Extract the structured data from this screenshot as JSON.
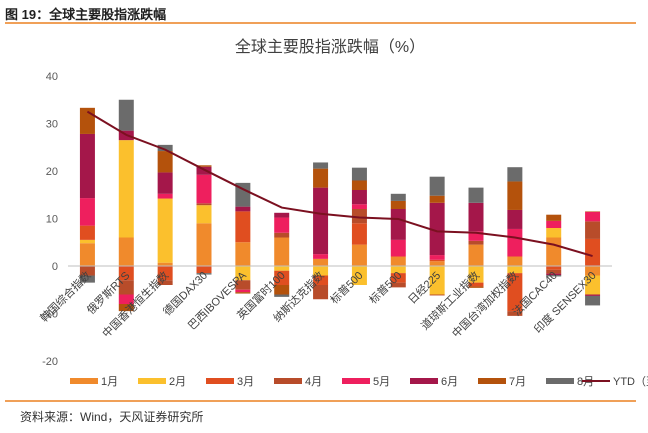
{
  "figure_label": "图 19：全球主要股指涨跌幅",
  "source_note": "资料来源：Wind，天风证券研究所",
  "colors": {
    "rule": "#f0a058",
    "ytd_line": "#7b1020",
    "months": [
      "#f08a2c",
      "#fbc02d",
      "#e04e20",
      "#b84c2a",
      "#ee1f5e",
      "#a4174a",
      "#b4520c",
      "#6b6b6b"
    ]
  },
  "chart_data": {
    "type": "bar",
    "stacked": true,
    "title": "全球主要股指涨跌幅（%）",
    "xlabel": "",
    "ylabel": "",
    "ylim": [
      -20,
      40
    ],
    "yticks": [
      -20,
      -10,
      0,
      10,
      20,
      30,
      40
    ],
    "grid": false,
    "legend_position": "bottom",
    "categories": [
      "韩国综合指数",
      "俄罗斯RTS",
      "中国香港恒生指数",
      "德国DAX30",
      "巴西IBOVESPA",
      "英国富时100",
      "纳斯达克指数",
      "标普500",
      "标普500",
      "日经225",
      "道琼斯工业指数",
      "中国台湾加权指数",
      "法国CAC40",
      "印度 SENSEX30"
    ],
    "series": [
      {
        "name": "1月",
        "values": [
          4.8,
          6.0,
          0.7,
          9.0,
          5.0,
          6.0,
          1.5,
          4.5,
          2.0,
          1.0,
          4.5,
          2.0,
          6.0,
          -2.0
        ]
      },
      {
        "name": "2月",
        "values": [
          0.7,
          20.5,
          13.5,
          3.8,
          -3.0,
          -1.0,
          -2.0,
          -4.0,
          -1.5,
          -6.0,
          -3.5,
          -1.5,
          2.0,
          -4.0
        ]
      },
      {
        "name": "3月",
        "values": [
          3.0,
          -3.0,
          -3.0,
          -1.5,
          6.5,
          -3.0,
          -2.0,
          4.5,
          -2.0,
          0.3,
          -0.8,
          -8.0,
          -0.8,
          5.7
        ]
      },
      {
        "name": "4月",
        "values": [
          -2.0,
          -3.0,
          -1.0,
          0.4,
          -2.0,
          1.0,
          -3.0,
          3.0,
          -1.0,
          -0.2,
          0.8,
          -1.0,
          -0.8,
          3.7
        ]
      },
      {
        "name": "5月",
        "values": [
          5.8,
          -2.0,
          1.0,
          6.0,
          -0.5,
          3.2,
          1.0,
          1.0,
          3.5,
          1.0,
          2.0,
          5.8,
          1.5,
          2.0
        ]
      },
      {
        "name": "6月",
        "values": [
          13.5,
          2.0,
          4.5,
          1.7,
          1.0,
          1.0,
          14.0,
          3.0,
          6.5,
          11.0,
          6.0,
          4.0,
          -0.3,
          -0.3
        ]
      },
      {
        "name": "7月",
        "values": [
          5.5,
          -1.5,
          4.5,
          0.3,
          -0.3,
          -2.0,
          4.0,
          2.0,
          1.7,
          1.5,
          -0.3,
          6.0,
          1.3,
          0.1
        ]
      },
      {
        "name": "8月",
        "values": [
          -1.5,
          6.5,
          1.3,
          -0.3,
          5.0,
          -0.5,
          1.3,
          2.7,
          1.5,
          4.0,
          3.2,
          3.0,
          -0.3,
          -2.0
        ]
      }
    ],
    "ytd": {
      "name": "YTD（至8/31）",
      "values": [
        32.5,
        27.6,
        24.5,
        20.3,
        16.2,
        12.3,
        11.0,
        10.2,
        9.9,
        7.3,
        7.0,
        6.0,
        4.5,
        2.1
      ]
    }
  }
}
